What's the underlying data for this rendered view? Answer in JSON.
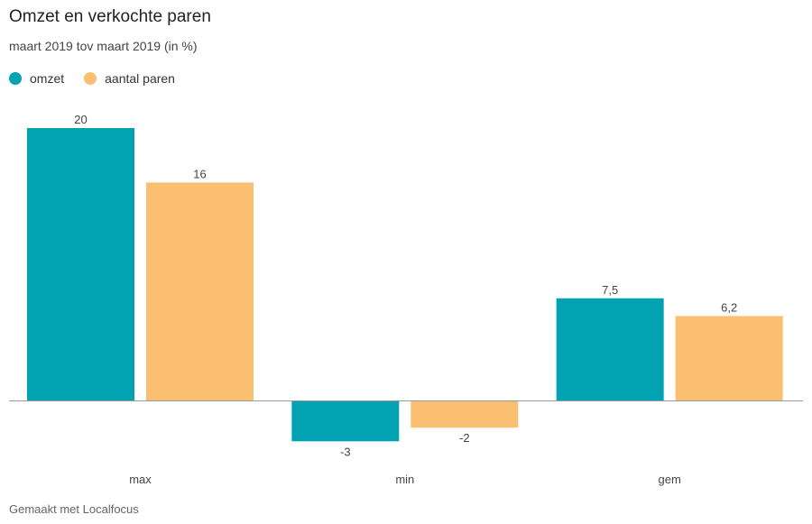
{
  "header": {
    "title": "Omzet en verkochte paren",
    "subtitle": "maart 2019 tov maart 2019 (in %)"
  },
  "footer": {
    "credit": "Gemaakt met Localfocus"
  },
  "legend": [
    {
      "label": "omzet",
      "color": "#01a2b1"
    },
    {
      "label": "aantal paren",
      "color": "#fbbf72"
    }
  ],
  "chart_data": {
    "type": "bar",
    "title": "Omzet en verkochte paren",
    "subtitle": "maart 2019 tov maart 2019 (in %)",
    "categories": [
      "max",
      "min",
      "gem"
    ],
    "series": [
      {
        "name": "omzet",
        "values": [
          20,
          -3,
          7.5
        ],
        "labels": [
          "20",
          "-3",
          "7,5"
        ],
        "color": "#01a2b1"
      },
      {
        "name": "aantal paren",
        "values": [
          16,
          -2,
          6.2
        ],
        "labels": [
          "16",
          "-2",
          "6,2"
        ],
        "color": "#fbbf72"
      }
    ],
    "ylim": [
      -3,
      20
    ],
    "grid": false,
    "legend_position": "top-left"
  }
}
